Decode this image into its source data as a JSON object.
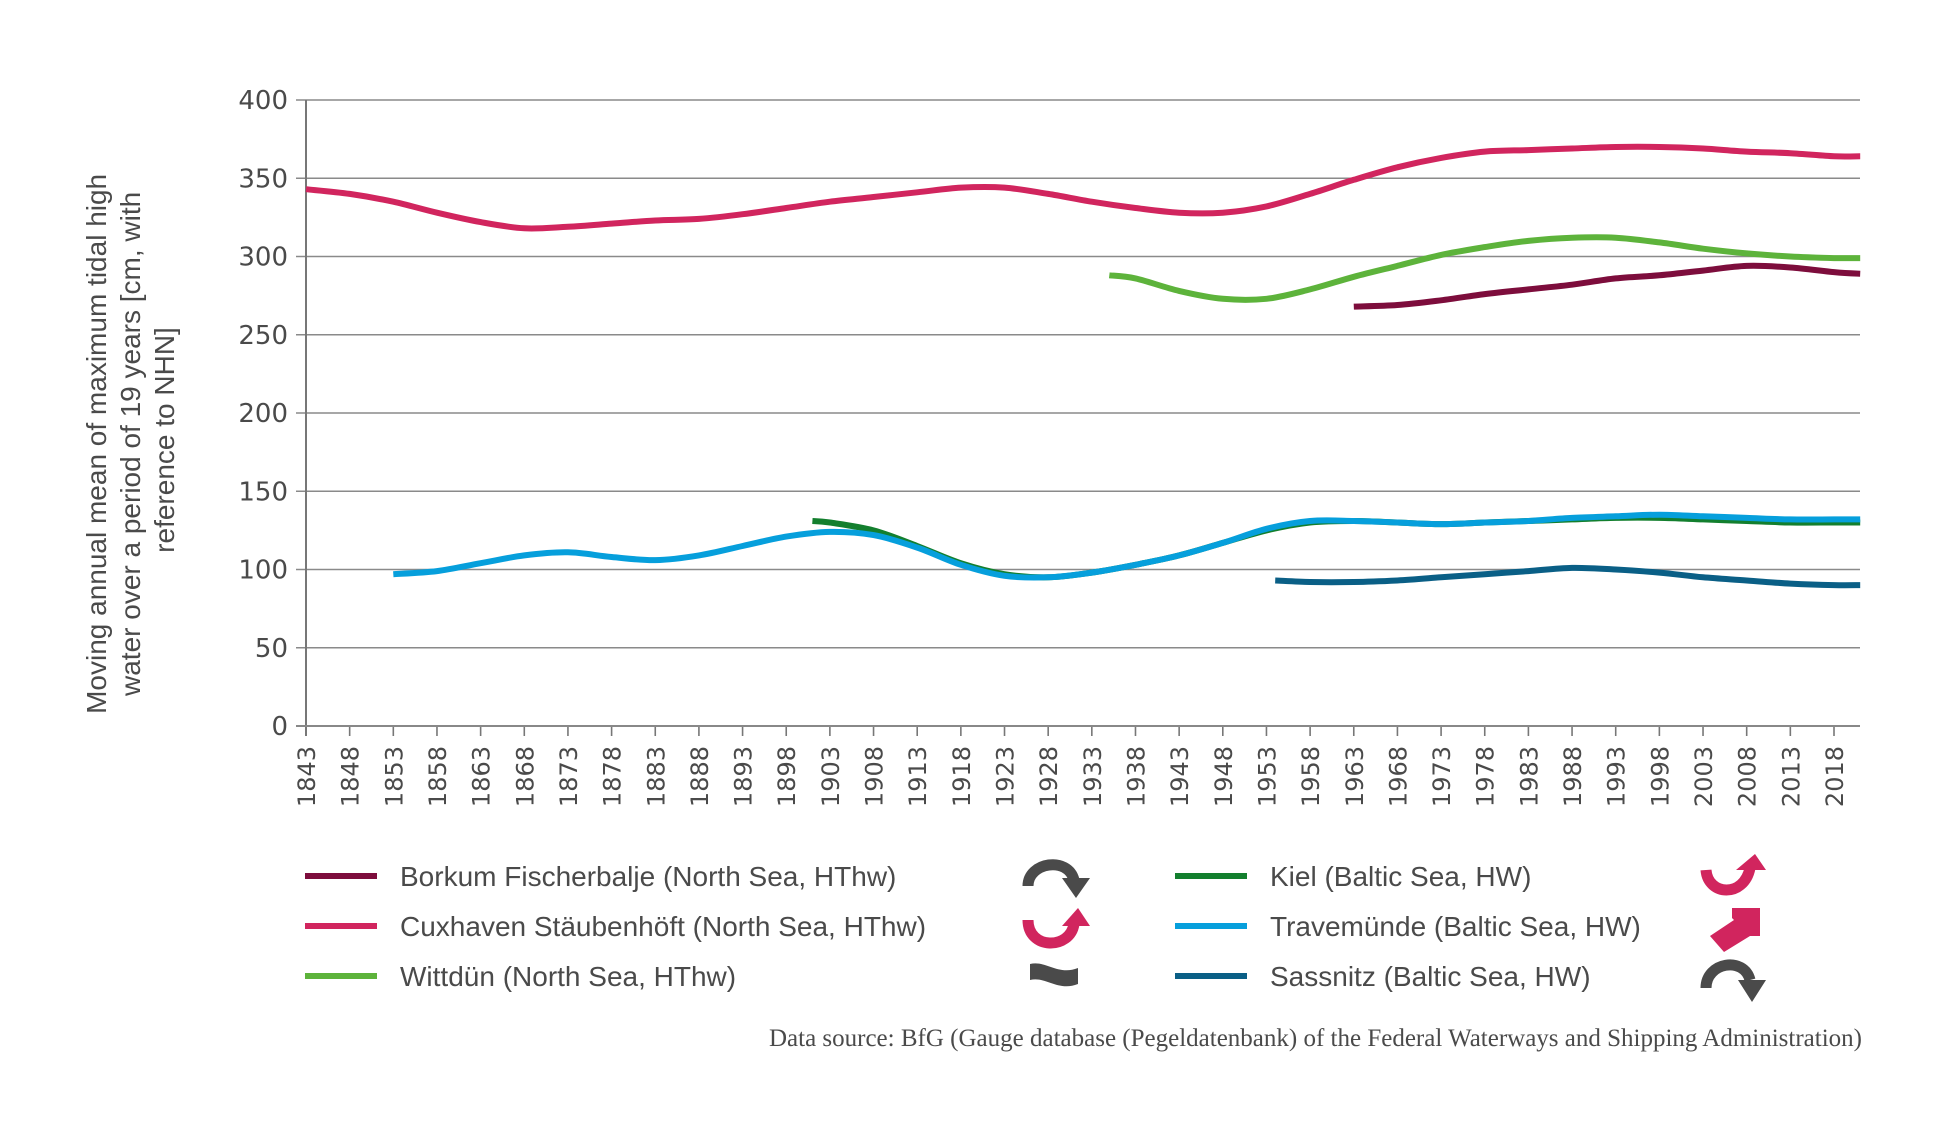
{
  "chart_data": {
    "type": "line",
    "title": "",
    "xlabel": "",
    "ylabel_lines": [
      "Moving annual mean of maximum tidal high",
      "water over a period of 19 years [cm, with",
      "reference to NHN]"
    ],
    "xlim": [
      1843,
      2021
    ],
    "ylim": [
      0,
      400
    ],
    "yticks": [
      "0",
      "50",
      "100",
      "150",
      "200",
      "250",
      "300",
      "350",
      "400"
    ],
    "xticks": [
      "1843",
      "1848",
      "1853",
      "1858",
      "1863",
      "1868",
      "1873",
      "1878",
      "1883",
      "1888",
      "1893",
      "1898",
      "1903",
      "1908",
      "1913",
      "1918",
      "1923",
      "1928",
      "1933",
      "1938",
      "1943",
      "1948",
      "1953",
      "1958",
      "1963",
      "1968",
      "1973",
      "1978",
      "1983",
      "1988",
      "1993",
      "1998",
      "2003",
      "2008",
      "2013",
      "2018"
    ],
    "grid": "horizontal",
    "legend_position": "bottom",
    "series": [
      {
        "name": "Borkum Fischerbalje (North Sea, HThw)",
        "color": "#7d0d3c",
        "trend_icon": "curved-arrow-down-icon",
        "trend_icon_color": "#4a4a4a",
        "x": [
          1963,
          1968,
          1973,
          1978,
          1983,
          1988,
          1993,
          1998,
          2003,
          2008,
          2013,
          2018,
          2021
        ],
        "y": [
          268,
          269,
          272,
          276,
          279,
          282,
          286,
          288,
          291,
          294,
          293,
          290,
          289
        ]
      },
      {
        "name": "Cuxhaven Stäubenhöft (North Sea, HThw)",
        "color": "#d1255e",
        "trend_icon": "curved-arrow-up-icon",
        "trend_icon_color": "#d1255e",
        "x": [
          1843,
          1848,
          1853,
          1858,
          1863,
          1868,
          1873,
          1878,
          1883,
          1888,
          1893,
          1898,
          1903,
          1908,
          1913,
          1918,
          1923,
          1928,
          1933,
          1938,
          1943,
          1948,
          1953,
          1958,
          1963,
          1968,
          1973,
          1978,
          1983,
          1988,
          1993,
          1998,
          2003,
          2008,
          2013,
          2018,
          2021
        ],
        "y": [
          343,
          340,
          335,
          328,
          322,
          318,
          319,
          321,
          323,
          324,
          327,
          331,
          335,
          338,
          341,
          344,
          344,
          340,
          335,
          331,
          328,
          328,
          332,
          340,
          349,
          357,
          363,
          367,
          368,
          369,
          370,
          370,
          369,
          367,
          366,
          364,
          364
        ]
      },
      {
        "name": "Wittdün (North Sea, HThw)",
        "color": "#5db33b",
        "trend_icon": "wave-tilde-icon",
        "trend_icon_color": "#4a4a4a",
        "x": [
          1935,
          1938,
          1943,
          1948,
          1953,
          1958,
          1963,
          1968,
          1973,
          1978,
          1983,
          1988,
          1993,
          1998,
          2003,
          2008,
          2013,
          2018,
          2021
        ],
        "y": [
          288,
          286,
          278,
          273,
          273,
          279,
          287,
          294,
          301,
          306,
          310,
          312,
          312,
          309,
          305,
          302,
          300,
          299,
          299
        ]
      },
      {
        "name": "Kiel (Baltic Sea, HW)",
        "color": "#137f2e",
        "trend_icon": "curved-arrow-up-right-icon",
        "trend_icon_color": "#d1255e",
        "x": [
          1901,
          1903,
          1908,
          1913,
          1918,
          1923,
          1928,
          1933,
          1938,
          1943,
          1948,
          1953,
          1958,
          1963,
          1968,
          1973,
          1978,
          1983,
          1988,
          1993,
          1998,
          2003,
          2008,
          2013,
          2018,
          2021
        ],
        "y": [
          131,
          130,
          125,
          115,
          104,
          97,
          95,
          98,
          103,
          109,
          117,
          125,
          130,
          131,
          130,
          129,
          130,
          131,
          132,
          133,
          133,
          132,
          131,
          130,
          130,
          130
        ]
      },
      {
        "name": "Travemünde (Baltic Sea, HW)",
        "color": "#069fdc",
        "trend_icon": "diagonal-arrow-up-right-icon",
        "trend_icon_color": "#d1255e",
        "x": [
          1853,
          1858,
          1863,
          1868,
          1873,
          1878,
          1883,
          1888,
          1893,
          1898,
          1903,
          1908,
          1913,
          1918,
          1923,
          1928,
          1933,
          1938,
          1943,
          1948,
          1953,
          1958,
          1963,
          1968,
          1973,
          1978,
          1983,
          1988,
          1993,
          1998,
          2003,
          2008,
          2013,
          2018,
          2021
        ],
        "y": [
          97,
          99,
          104,
          109,
          111,
          108,
          106,
          109,
          115,
          121,
          124,
          122,
          114,
          103,
          96,
          95,
          98,
          103,
          109,
          117,
          126,
          131,
          131,
          130,
          129,
          130,
          131,
          133,
          134,
          135,
          134,
          133,
          132,
          132,
          132
        ]
      },
      {
        "name": "Sassnitz (Baltic Sea, HW)",
        "color": "#0a5f86",
        "trend_icon": "curved-arrow-down-icon",
        "trend_icon_color": "#4a4a4a",
        "x": [
          1954,
          1958,
          1963,
          1968,
          1973,
          1978,
          1983,
          1988,
          1993,
          1998,
          2003,
          2008,
          2013,
          2018,
          2021
        ],
        "y": [
          93,
          92,
          92,
          93,
          95,
          97,
          99,
          101,
          100,
          98,
          95,
          93,
          91,
          90,
          90
        ]
      }
    ],
    "annotation": "Data source: BfG (Gauge database (Pegeldatenbank) of the Federal Waterways and Shipping Administration)"
  }
}
